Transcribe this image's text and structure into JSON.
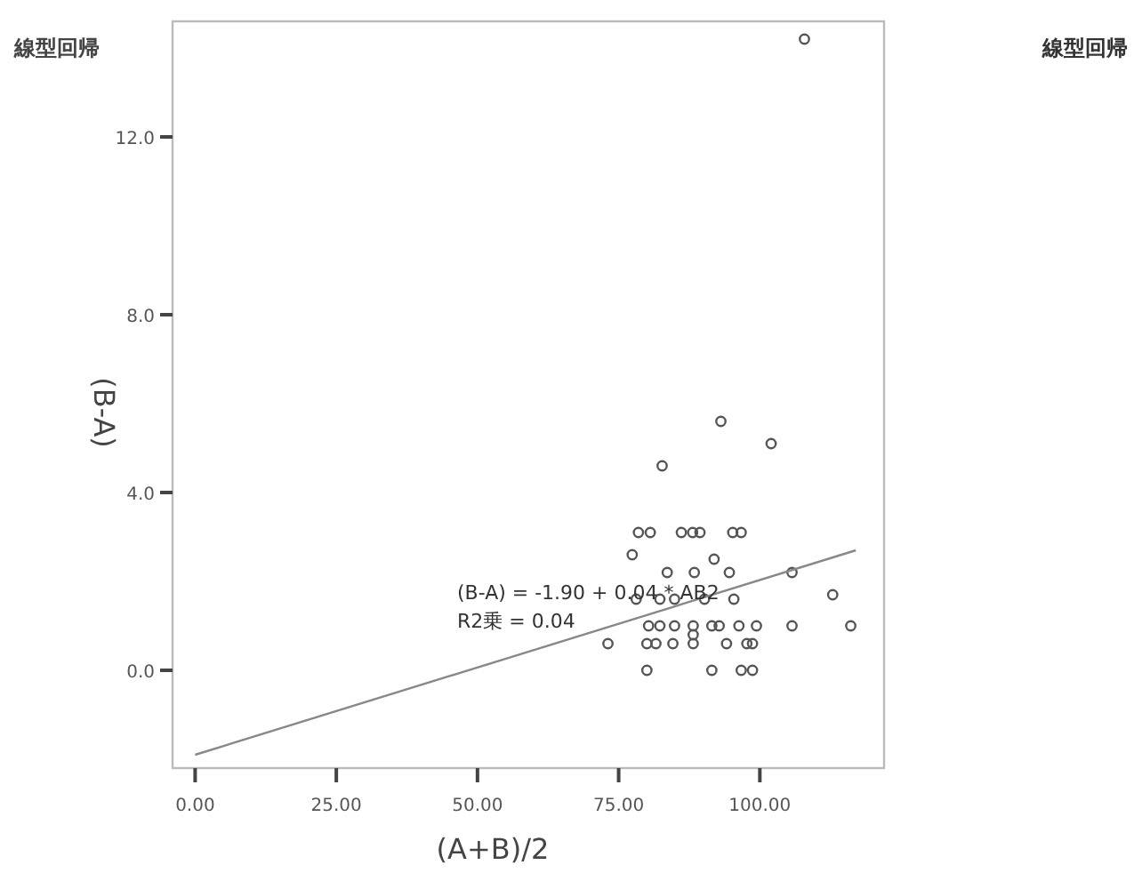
{
  "chart_data": {
    "type": "scatter",
    "title": "線型回帰",
    "xlabel": "(A+B)/2",
    "ylabel": "(B-A)",
    "annotations": [
      "(B-A) = -1.90 + 0.04 * AB2",
      "R2乗 = 0.04",
      "線型回帰"
    ],
    "xlim": [
      -4,
      122
    ],
    "ylim": [
      -2.2,
      14.6
    ],
    "xticks": [
      {
        "value": 0,
        "label": "0.00"
      },
      {
        "value": 25,
        "label": "25.00"
      },
      {
        "value": 50,
        "label": "50.00"
      },
      {
        "value": 75,
        "label": "75.00"
      },
      {
        "value": 100,
        "label": "100.00"
      }
    ],
    "yticks": [
      {
        "value": 0,
        "label": "0.0"
      },
      {
        "value": 4,
        "label": "4.0"
      },
      {
        "value": 8,
        "label": "8.0"
      },
      {
        "value": 12,
        "label": "12.0"
      }
    ],
    "grid": false,
    "series": [
      {
        "color": "#555555",
        "marker": "circle",
        "x": [
          107.9,
          93.1,
          102,
          82.7,
          78.5,
          80.6,
          86.1,
          88.1,
          89.4,
          95.2,
          96.7,
          77.4,
          91.9,
          83.6,
          88.4,
          94.6,
          105.7,
          112.9,
          78.1,
          82.3,
          84.9,
          90.2,
          95.4,
          80.3,
          82.3,
          84.9,
          88.2,
          91.5,
          92.8,
          96.3,
          99.4,
          105.7,
          116.1,
          73.1,
          80.0,
          81.6,
          84.6,
          88.2,
          94.1,
          97.7,
          98.7,
          88.2,
          80.0,
          91.5,
          96.7,
          98.7
        ],
        "values": [
          14.2,
          5.6,
          5.1,
          4.6,
          3.1,
          3.1,
          3.1,
          3.1,
          3.1,
          3.1,
          3.1,
          2.6,
          2.5,
          2.2,
          2.2,
          2.2,
          2.2,
          1.7,
          1.6,
          1.6,
          1.6,
          1.6,
          1.6,
          1.0,
          1.0,
          1.0,
          1.0,
          1.0,
          1.0,
          1.0,
          1.0,
          1.0,
          1.0,
          0.6,
          0.6,
          0.6,
          0.6,
          0.6,
          0.6,
          0.6,
          0.6,
          0.8,
          0.0,
          0.0,
          0.0,
          0.0
        ]
      },
      {
        "type": "line",
        "color": "#888888",
        "x": [
          0,
          117
        ],
        "values": [
          -1.9,
          2.7
        ]
      }
    ]
  }
}
